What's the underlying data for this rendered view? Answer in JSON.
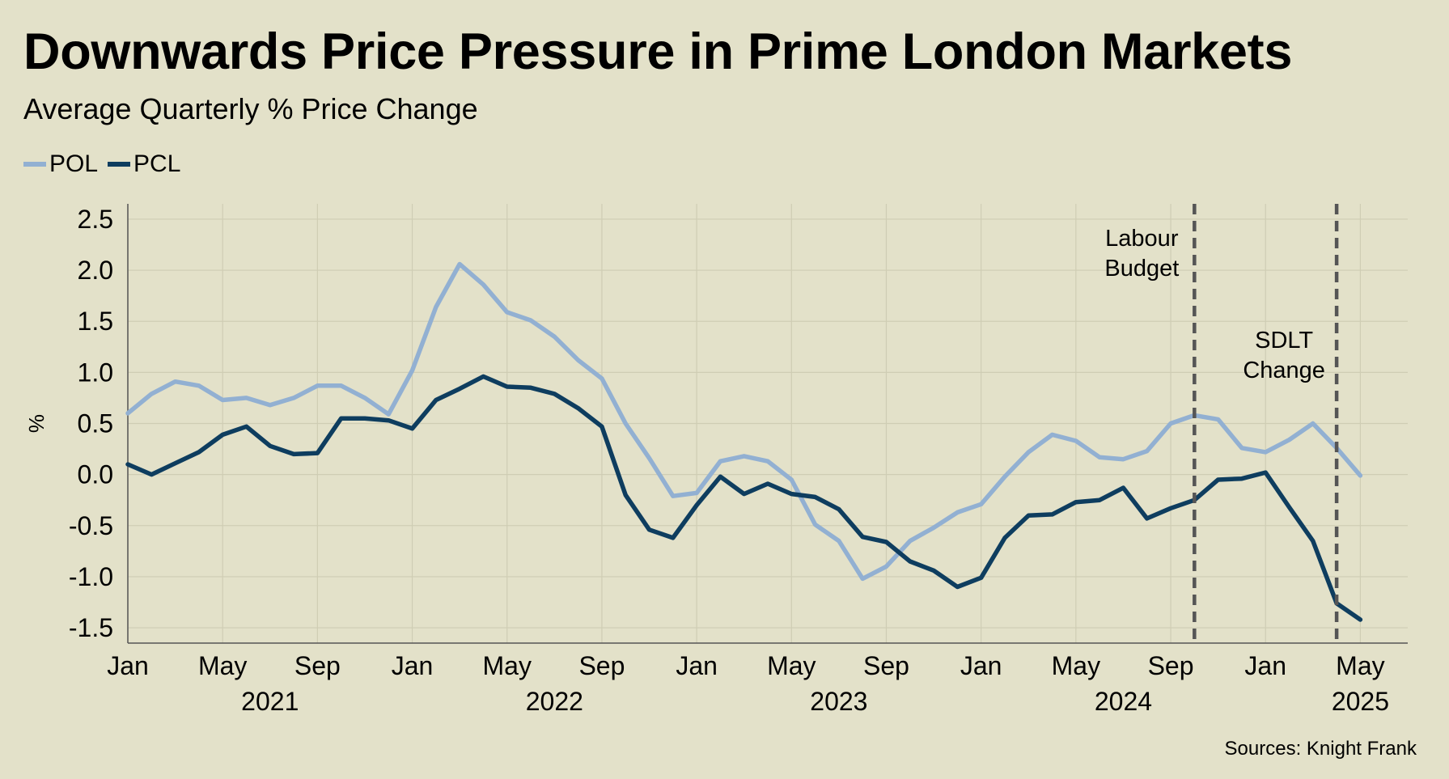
{
  "header": {
    "title": "Downwards Price Pressure in Prime London Markets",
    "subtitle": "Average Quarterly % Price Change"
  },
  "source": "Sources: Knight Frank",
  "chart_data": {
    "type": "line",
    "title": "Downwards Price Pressure in Prime London Markets",
    "subtitle": "Average Quarterly % Price Change",
    "ylabel": "%",
    "xlabel": "",
    "ylim": [
      -1.65,
      2.65
    ],
    "y_ticks": [
      -1.5,
      -1.0,
      -0.5,
      0.0,
      0.5,
      1.0,
      1.5,
      2.0,
      2.5
    ],
    "y_tick_labels": [
      "-1.5",
      "-1.0",
      "-0.5",
      "0.0",
      "0.5",
      "1.0",
      "1.5",
      "2.0",
      "2.5"
    ],
    "x_month_ticks": [
      {
        "month": "2021-01",
        "label": "Jan"
      },
      {
        "month": "2021-05",
        "label": "May"
      },
      {
        "month": "2021-09",
        "label": "Sep"
      },
      {
        "month": "2022-01",
        "label": "Jan"
      },
      {
        "month": "2022-05",
        "label": "May"
      },
      {
        "month": "2022-09",
        "label": "Sep"
      },
      {
        "month": "2023-01",
        "label": "Jan"
      },
      {
        "month": "2023-05",
        "label": "May"
      },
      {
        "month": "2023-09",
        "label": "Sep"
      },
      {
        "month": "2024-01",
        "label": "Jan"
      },
      {
        "month": "2024-05",
        "label": "May"
      },
      {
        "month": "2024-09",
        "label": "Sep"
      },
      {
        "month": "2025-01",
        "label": "Jan"
      },
      {
        "month": "2025-05",
        "label": "May"
      }
    ],
    "x_year_labels": [
      {
        "year": "2021",
        "center": "2021-07"
      },
      {
        "year": "2022",
        "center": "2022-07"
      },
      {
        "year": "2023",
        "center": "2023-07"
      },
      {
        "year": "2024",
        "center": "2024-07"
      },
      {
        "year": "2025",
        "center": "2025-05"
      }
    ],
    "x_range": [
      "2021-01",
      "2025-07"
    ],
    "grid": true,
    "legend": "top-left",
    "x": [
      "2021-01",
      "2021-02",
      "2021-03",
      "2021-04",
      "2021-05",
      "2021-06",
      "2021-07",
      "2021-08",
      "2021-09",
      "2021-10",
      "2021-11",
      "2021-12",
      "2022-01",
      "2022-02",
      "2022-03",
      "2022-04",
      "2022-05",
      "2022-06",
      "2022-07",
      "2022-08",
      "2022-09",
      "2022-10",
      "2022-11",
      "2022-12",
      "2023-01",
      "2023-02",
      "2023-03",
      "2023-04",
      "2023-05",
      "2023-06",
      "2023-07",
      "2023-08",
      "2023-09",
      "2023-10",
      "2023-11",
      "2023-12",
      "2024-01",
      "2024-02",
      "2024-03",
      "2024-04",
      "2024-05",
      "2024-06",
      "2024-07",
      "2024-08",
      "2024-09",
      "2024-10",
      "2024-11",
      "2024-12",
      "2025-01",
      "2025-02",
      "2025-03",
      "2025-04",
      "2025-05"
    ],
    "series": [
      {
        "name": "POL",
        "color": "#92b0d2",
        "values": [
          0.6,
          0.79,
          0.91,
          0.87,
          0.73,
          0.75,
          0.68,
          0.75,
          0.87,
          0.87,
          0.75,
          0.59,
          1.02,
          1.64,
          2.06,
          1.86,
          1.59,
          1.51,
          1.35,
          1.12,
          0.94,
          0.5,
          0.16,
          -0.21,
          -0.18,
          0.13,
          0.18,
          0.13,
          -0.05,
          -0.49,
          -0.65,
          -1.02,
          -0.9,
          -0.65,
          -0.52,
          -0.37,
          -0.29,
          -0.02,
          0.22,
          0.39,
          0.33,
          0.17,
          0.15,
          0.23,
          0.5,
          0.58,
          0.54,
          0.26,
          0.22,
          0.34,
          0.5,
          0.26,
          -0.01
        ]
      },
      {
        "name": "PCL",
        "color": "#0e3d5f",
        "values": [
          0.1,
          0.0,
          0.11,
          0.22,
          0.39,
          0.47,
          0.28,
          0.2,
          0.21,
          0.55,
          0.55,
          0.53,
          0.45,
          0.73,
          0.84,
          0.96,
          0.86,
          0.85,
          0.79,
          0.65,
          0.47,
          -0.2,
          -0.54,
          -0.62,
          -0.3,
          -0.02,
          -0.19,
          -0.09,
          -0.19,
          -0.22,
          -0.34,
          -0.61,
          -0.66,
          -0.85,
          -0.94,
          -1.1,
          -1.01,
          -0.62,
          -0.4,
          -0.39,
          -0.27,
          -0.25,
          -0.13,
          -0.43,
          -0.33,
          -0.25,
          -0.05,
          -0.04,
          0.02,
          -0.32,
          -0.65,
          -1.26,
          -1.42
        ]
      }
    ],
    "annotations": [
      {
        "month": "2024-10",
        "lines": [
          "Labour",
          "Budget"
        ],
        "style": "dashed-vertical",
        "color": "#555555"
      },
      {
        "month": "2025-04",
        "lines": [
          "SDLT",
          "Change"
        ],
        "style": "dashed-vertical",
        "color": "#555555"
      }
    ]
  }
}
